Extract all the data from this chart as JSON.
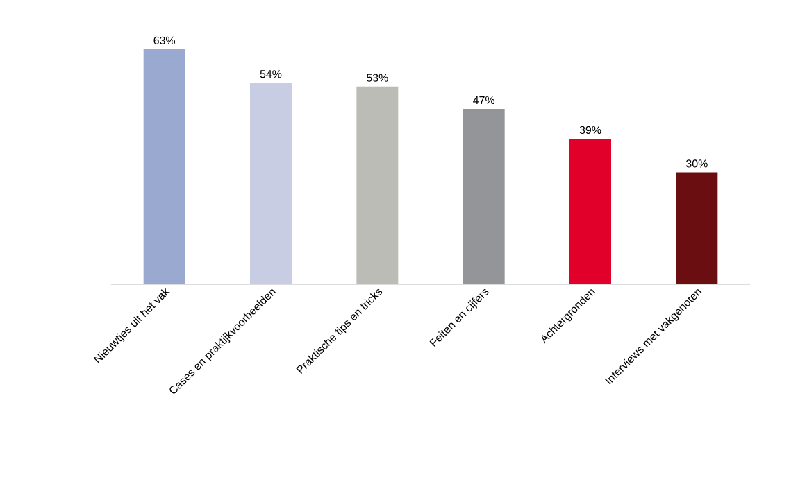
{
  "chart_data": {
    "type": "bar",
    "categories": [
      "Nieuwtjes uit het vak",
      "Cases en praktijkvoorbeelden",
      "Praktische tips en tricks",
      "Feiten en cijfers",
      "Achtergronden",
      "Interviews met vakgenoten"
    ],
    "values": [
      63,
      54,
      53,
      47,
      39,
      30
    ],
    "colors": [
      "#9aa9d0",
      "#c8cde3",
      "#bbbcb6",
      "#939598",
      "#e0002a",
      "#6b0e11"
    ],
    "value_labels": [
      "63%",
      "54%",
      "53%",
      "47%",
      "39%",
      "30%"
    ]
  }
}
